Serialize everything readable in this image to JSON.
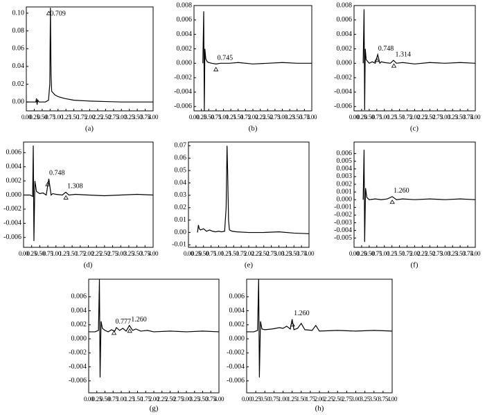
{
  "chart_data": [
    {
      "type": "line",
      "caption": "(a)",
      "xlim": [
        0,
        4
      ],
      "ylim": [
        -0.01,
        0.107
      ],
      "xticks": [
        {
          "value": 0,
          "label": "0.00"
        },
        0.25,
        {
          "value": 0.5,
          "label": "0.50"
        },
        0.75,
        {
          "value": 1,
          "label": "1.00"
        },
        1.25,
        {
          "value": 1.5,
          "label": "1.50"
        },
        1.75,
        {
          "value": 2,
          "label": "2.00"
        },
        2.25,
        {
          "value": 2.5,
          "label": "2.50"
        },
        2.75,
        {
          "value": 3,
          "label": "3.00"
        },
        3.25,
        {
          "value": 3.5,
          "label": "3.50"
        },
        3.75,
        {
          "value": 4,
          "label": "4.00"
        }
      ],
      "yticks": [
        {
          "value": 0,
          "label": "0.00"
        },
        0.02,
        0.04,
        0.06,
        0.08,
        {
          "value": 0.1,
          "label": "0.10"
        }
      ],
      "series": [
        {
          "color": "#000000",
          "x": [
            0,
            0.3,
            0.32,
            0.34,
            0.36,
            0.4,
            0.5,
            0.6,
            0.7,
            0.74,
            0.76,
            0.78,
            0.8,
            0.85,
            0.9,
            1.0,
            1.2,
            1.5,
            2.0,
            2.5,
            3.0,
            3.5,
            4.0
          ],
          "values": [
            0,
            0,
            0.004,
            -0.003,
            0.002,
            0,
            0,
            0,
            0.002,
            0.02,
            0.106,
            0.03,
            0.012,
            0.01,
            0.008,
            0.006,
            0.004,
            0.002,
            0.001,
            0.0005,
            0,
            0,
            0
          ]
        }
      ],
      "annotations": [
        {
          "label": "0.709",
          "x": 0.709
        }
      ]
    },
    {
      "type": "line",
      "caption": "(b)",
      "xlim": [
        0,
        4
      ],
      "ylim": [
        -0.0066,
        0.008
      ],
      "xticks": [
        {
          "value": 0,
          "label": "0.00"
        },
        0.25,
        {
          "value": 0.5,
          "label": "0.50"
        },
        0.75,
        {
          "value": 1,
          "label": "1.00"
        },
        1.25,
        {
          "value": 1.5,
          "label": "1.50"
        },
        1.75,
        {
          "value": 2,
          "label": "2.00"
        },
        2.25,
        {
          "value": 2.5,
          "label": "2.50"
        },
        2.75,
        {
          "value": 3,
          "label": "3.00"
        },
        3.25,
        {
          "value": 3.5,
          "label": "3.50"
        },
        3.75,
        {
          "value": 4,
          "label": "4.00"
        }
      ],
      "yticks": [
        -0.006,
        -0.004,
        -0.002,
        {
          "value": 0,
          "label": "0.000"
        },
        0.002,
        0.004,
        0.006,
        0.008
      ],
      "series": [
        {
          "color": "#000000",
          "x": [
            0.3,
            0.33,
            0.35,
            0.37,
            0.4,
            0.45,
            0.5,
            0.6,
            0.75,
            0.9,
            1.2,
            1.5,
            2,
            2.5,
            3,
            3.5,
            4
          ],
          "values": [
            0,
            0.0072,
            -0.0066,
            0.002,
            0.0006,
            0.0002,
            0.0001,
            0,
            -0.0001,
            0,
            0,
            0.0001,
            -0.0001,
            0,
            0.0001,
            0,
            0
          ]
        }
      ],
      "annotations": [
        {
          "label": "0.745",
          "x": 0.745
        }
      ]
    },
    {
      "type": "line",
      "caption": "(c)",
      "xlim": [
        0,
        4
      ],
      "ylim": [
        -0.0066,
        0.008
      ],
      "xticks": [
        {
          "value": 0,
          "label": "0.00"
        },
        0.25,
        {
          "value": 0.5,
          "label": "0.50"
        },
        0.75,
        {
          "value": 1,
          "label": "1.00"
        },
        1.25,
        {
          "value": 1.5,
          "label": "1.50"
        },
        1.75,
        {
          "value": 2,
          "label": "2.00"
        },
        2.25,
        {
          "value": 2.5,
          "label": "2.50"
        },
        2.75,
        {
          "value": 3,
          "label": "3.00"
        },
        3.25,
        {
          "value": 3.5,
          "label": "3.50"
        },
        3.75,
        {
          "value": 4,
          "label": "4.00"
        }
      ],
      "yticks": [
        -0.006,
        -0.004,
        -0.002,
        {
          "value": 0,
          "label": "0.000"
        },
        0.002,
        0.004,
        0.006,
        0.008
      ],
      "series": [
        {
          "color": "#000000",
          "x": [
            0.3,
            0.33,
            0.35,
            0.37,
            0.4,
            0.5,
            0.6,
            0.7,
            0.78,
            0.85,
            0.9,
            1.0,
            1.2,
            1.3,
            1.4,
            1.6,
            2,
            2.5,
            3,
            3.5,
            4
          ],
          "values": [
            0,
            0.0075,
            -0.0065,
            0.002,
            0.0005,
            0,
            0.0002,
            0,
            0.0012,
            0,
            0.0002,
            0.0001,
            0,
            0.0004,
            0,
            0.0001,
            -0.0001,
            0.0001,
            0,
            0.0001,
            0
          ]
        }
      ],
      "annotations": [
        {
          "label": "0.748",
          "x": 0.748
        },
        {
          "label": "1.314",
          "x": 1.314
        }
      ]
    },
    {
      "type": "line",
      "caption": "(d)",
      "xlim": [
        0,
        4
      ],
      "ylim": [
        -0.0074,
        0.0075
      ],
      "xticks": [
        {
          "value": 0,
          "label": "0.00"
        },
        0.25,
        {
          "value": 0.5,
          "label": "0.50"
        },
        0.75,
        {
          "value": 1,
          "label": "1.00"
        },
        1.25,
        {
          "value": 1.5,
          "label": "1.50"
        },
        1.75,
        {
          "value": 2,
          "label": "2.00"
        },
        2.25,
        {
          "value": 2.5,
          "label": "2.50"
        },
        2.75,
        {
          "value": 3,
          "label": "3.00"
        },
        3.25,
        {
          "value": 3.5,
          "label": "3.50"
        },
        3.75,
        {
          "value": 4,
          "label": "4.00"
        }
      ],
      "yticks": [
        -0.006,
        -0.004,
        -0.002,
        {
          "value": 0,
          "label": "0.000"
        },
        0.002,
        0.004,
        0.006
      ],
      "series": [
        {
          "color": "#000000",
          "x": [
            0,
            0.1,
            0.2,
            0.28,
            0.3,
            0.32,
            0.35,
            0.4,
            0.5,
            0.6,
            0.7,
            0.78,
            0.85,
            0.9,
            1.0,
            1.2,
            1.3,
            1.4,
            1.6,
            2,
            2.5,
            3,
            3.5,
            4
          ],
          "values": [
            0,
            0,
            0,
            -0.0002,
            0.007,
            -0.0065,
            0.002,
            0.0005,
            0.0002,
            0.0003,
            0,
            0.0023,
            0,
            0.0002,
            0.0001,
            0,
            0.0004,
            0,
            0.0001,
            0,
            -0.0001,
            0,
            0.0001,
            0
          ]
        }
      ],
      "annotations": [
        {
          "label": "0.748",
          "x": 0.748
        },
        {
          "label": "1.308",
          "x": 1.308
        }
      ]
    },
    {
      "type": "line",
      "caption": "(e)",
      "xlim": [
        0,
        4
      ],
      "ylim": [
        -0.012,
        0.073
      ],
      "xticks": [
        {
          "value": 0,
          "label": "0.00"
        },
        0.25,
        {
          "value": 0.5,
          "label": "0.50"
        },
        0.75,
        {
          "value": 1,
          "label": "1.00"
        },
        1.25,
        {
          "value": 1.5,
          "label": "1.50"
        },
        1.75,
        {
          "value": 2,
          "label": "2.00"
        },
        2.25,
        {
          "value": 2.5,
          "label": "2.50"
        },
        2.75,
        {
          "value": 3,
          "label": "3.00"
        },
        3.25,
        {
          "value": 3.5,
          "label": "3.50"
        },
        3.75,
        {
          "value": 4,
          "label": "4.00"
        }
      ],
      "yticks": [
        -0.01,
        {
          "value": 0,
          "label": "0.00"
        },
        0.01,
        0.02,
        0.03,
        0.04,
        0.05,
        0.06,
        0.07
      ],
      "series": [
        {
          "color": "#000000",
          "x": [
            0.3,
            0.33,
            0.36,
            0.4,
            0.5,
            0.6,
            0.7,
            0.8,
            0.9,
            1.0,
            1.1,
            1.2,
            1.25,
            1.28,
            1.3,
            1.33,
            1.36,
            1.45,
            1.6,
            2,
            2.5,
            3,
            3.5,
            4
          ],
          "values": [
            0,
            0.006,
            0.003,
            0.002,
            0.003,
            0.001,
            0.002,
            0.001,
            0.0005,
            0.001,
            0.0005,
            0.001,
            0.02,
            0.07,
            0.05,
            0.01,
            0.002,
            0.001,
            0.0005,
            0,
            0,
            0.0005,
            -0.0005,
            -0.001
          ]
        }
      ],
      "annotations": []
    },
    {
      "type": "line",
      "caption": "(f)",
      "xlim": [
        0,
        4
      ],
      "ylim": [
        -0.0062,
        0.0075
      ],
      "xticks": [
        {
          "value": 0,
          "label": "0.00"
        },
        0.25,
        {
          "value": 0.5,
          "label": "0.50"
        },
        0.75,
        {
          "value": 1,
          "label": "1.00"
        },
        1.25,
        {
          "value": 1.5,
          "label": "1.50"
        },
        1.75,
        {
          "value": 2,
          "label": "2.00"
        },
        2.25,
        {
          "value": 2.5,
          "label": "2.50"
        },
        2.75,
        {
          "value": 3,
          "label": "3.00"
        },
        3.25,
        {
          "value": 3.5,
          "label": "3.50"
        },
        3.75,
        {
          "value": 4,
          "label": "4.00"
        }
      ],
      "yticks": [
        -0.005,
        -0.004,
        -0.003,
        -0.002,
        -0.001,
        {
          "value": 0,
          "label": "0.000"
        },
        0.001,
        0.002,
        0.003,
        0.004,
        0.005,
        0.006
      ],
      "series": [
        {
          "color": "#000000",
          "x": [
            0.3,
            0.33,
            0.35,
            0.38,
            0.42,
            0.5,
            0.7,
            0.9,
            1.1,
            1.26,
            1.4,
            1.6,
            2,
            2.5,
            3,
            3.5,
            4
          ],
          "values": [
            0,
            0.0065,
            -0.0055,
            0.0015,
            0.0003,
            0,
            0.0001,
            0,
            0.0001,
            0.0004,
            0,
            0.0001,
            0,
            0.0001,
            0,
            0.0001,
            0
          ]
        }
      ],
      "annotations": [
        {
          "label": "1.260",
          "x": 1.26
        }
      ]
    },
    {
      "type": "line",
      "caption": "(g)",
      "xlim": [
        0,
        4
      ],
      "ylim": [
        -0.0077,
        0.0085
      ],
      "xticks": [
        {
          "value": 0,
          "label": "0.00"
        },
        0.25,
        {
          "value": 0.5,
          "label": "0.50"
        },
        0.75,
        {
          "value": 1,
          "label": "1.00"
        },
        1.25,
        {
          "value": 1.5,
          "label": "1.50"
        },
        1.75,
        {
          "value": 2,
          "label": "2.00"
        },
        2.25,
        {
          "value": 2.5,
          "label": "2.50"
        },
        2.75,
        {
          "value": 3,
          "label": "3.00"
        },
        3.25,
        {
          "value": 3.5,
          "label": "3.50"
        },
        3.75,
        {
          "value": 4,
          "label": "4.00"
        }
      ],
      "yticks": [
        -0.006,
        -0.004,
        -0.002,
        {
          "value": 0,
          "label": "0.000"
        },
        0.002,
        0.004,
        0.006
      ],
      "series": [
        {
          "color": "#000000",
          "x": [
            0,
            0.2,
            0.3,
            0.33,
            0.35,
            0.38,
            0.42,
            0.5,
            0.6,
            0.7,
            0.8,
            0.85,
            0.95,
            1.05,
            1.15,
            1.25,
            1.35,
            1.45,
            1.6,
            1.8,
            2,
            2.5,
            3,
            3.5,
            4
          ],
          "values": [
            0.001,
            0.001,
            0.0012,
            0.0085,
            -0.0055,
            0.0025,
            0.0015,
            0.0012,
            0.001,
            0.0013,
            0.0011,
            0.0016,
            0.0012,
            0.0015,
            0.0011,
            0.0019,
            0.0012,
            0.0014,
            0.0011,
            0.0012,
            0.001,
            0.0011,
            0.001,
            0.0011,
            0.001
          ]
        }
      ],
      "annotations": [
        {
          "label": "0.777",
          "x": 0.777
        },
        {
          "label": "1.260",
          "x": 1.26
        }
      ]
    },
    {
      "type": "line",
      "caption": "(h)",
      "xlim": [
        0,
        4
      ],
      "ylim": [
        -0.0077,
        0.0085
      ],
      "xticks": [
        {
          "value": 0,
          "label": "0.00"
        },
        0.25,
        {
          "value": 0.5,
          "label": "0.50"
        },
        0.75,
        {
          "value": 1,
          "label": "1.00"
        },
        1.25,
        {
          "value": 1.5,
          "label": "1.50"
        },
        1.75,
        {
          "value": 2,
          "label": "2.00"
        },
        2.25,
        {
          "value": 2.5,
          "label": "2.50"
        },
        2.75,
        {
          "value": 3,
          "label": "3.00"
        },
        3.25,
        {
          "value": 3.5,
          "label": "3.50"
        },
        3.75,
        {
          "value": 4,
          "label": "4.00"
        }
      ],
      "yticks": [
        -0.006,
        -0.004,
        -0.002,
        {
          "value": 0,
          "label": "0.000"
        },
        0.002,
        0.004,
        0.006
      ],
      "series": [
        {
          "color": "#000000",
          "x": [
            0,
            0.2,
            0.3,
            0.33,
            0.35,
            0.38,
            0.42,
            0.5,
            0.7,
            0.9,
            1.0,
            1.1,
            1.2,
            1.25,
            1.3,
            1.4,
            1.5,
            1.6,
            1.8,
            1.9,
            2.0,
            2.5,
            3,
            3.5,
            4
          ],
          "values": [
            0.001,
            0.001,
            0.0012,
            0.0085,
            -0.0055,
            0.0025,
            0.0014,
            0.0013,
            0.0014,
            0.0016,
            0.0015,
            0.0018,
            0.0014,
            0.0028,
            0.0013,
            0.0015,
            0.0022,
            0.0013,
            0.0012,
            0.0019,
            0.0011,
            0.0012,
            0.0011,
            0.0012,
            0.0011
          ]
        }
      ],
      "annotations": [
        {
          "label": "1.260",
          "x": 1.26
        }
      ]
    }
  ]
}
